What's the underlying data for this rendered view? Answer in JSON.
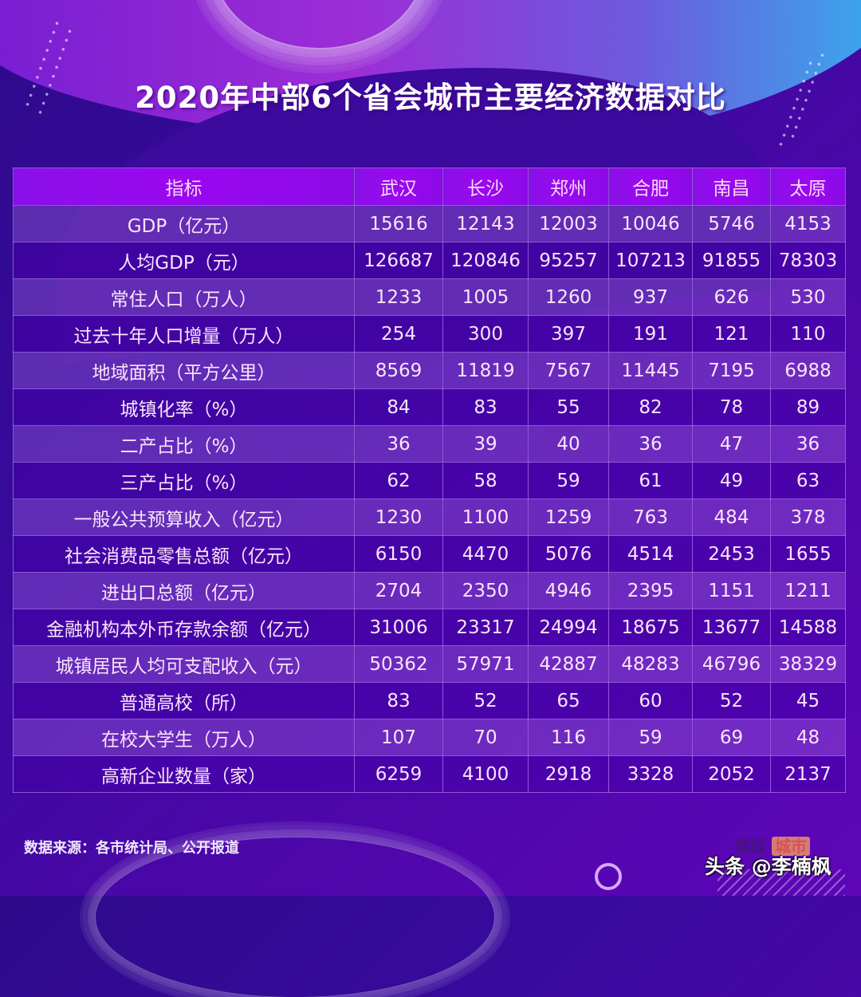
{
  "title": "2020年中部6个省会城市主要经济数据对比",
  "table": {
    "header": [
      "指标",
      "武汉",
      "长沙",
      "郑州",
      "合肥",
      "南昌",
      "太原"
    ],
    "rows": [
      [
        "GDP（亿元）",
        "15616",
        "12143",
        "12003",
        "10046",
        "5746",
        "4153"
      ],
      [
        "人均GDP（元）",
        "126687",
        "120846",
        "95257",
        "107213",
        "91855",
        "78303"
      ],
      [
        "常住人口（万人）",
        "1233",
        "1005",
        "1260",
        "937",
        "626",
        "530"
      ],
      [
        "过去十年人口增量（万人）",
        "254",
        "300",
        "397",
        "191",
        "121",
        "110"
      ],
      [
        "地域面积（平方公里）",
        "8569",
        "11819",
        "7567",
        "11445",
        "7195",
        "6988"
      ],
      [
        "城镇化率（%）",
        "84",
        "83",
        "55",
        "82",
        "78",
        "89"
      ],
      [
        "二产占比（%）",
        "36",
        "39",
        "40",
        "36",
        "47",
        "36"
      ],
      [
        "三产占比（%）",
        "62",
        "58",
        "59",
        "61",
        "49",
        "63"
      ],
      [
        "一般公共预算收入（亿元）",
        "1230",
        "1100",
        "1259",
        "763",
        "484",
        "378"
      ],
      [
        "社会消费品零售总额（亿元）",
        "6150",
        "4470",
        "5076",
        "4514",
        "2453",
        "1655"
      ],
      [
        "进出口总额（亿元）",
        "2704",
        "2350",
        "4946",
        "2395",
        "1151",
        "1211"
      ],
      [
        "金融机构本外币存款余额（亿元）",
        "31006",
        "23317",
        "24994",
        "18675",
        "13677",
        "14588"
      ],
      [
        "城镇居民人均可支配收入（元）",
        "50362",
        "57971",
        "42887",
        "48283",
        "46796",
        "38329"
      ],
      [
        "普通高校（所）",
        "83",
        "52",
        "65",
        "60",
        "52",
        "45"
      ],
      [
        "在校大学生（万人）",
        "107",
        "70",
        "116",
        "59",
        "69",
        "48"
      ],
      [
        "高新企业数量（家）",
        "6259",
        "4100",
        "2918",
        "3328",
        "2052",
        "2137"
      ]
    ]
  },
  "footer": {
    "source": "数据来源：各市统计局、公开报道",
    "logo_a": "搜狐",
    "logo_b": "城市",
    "watermark": "头条 @李楠枫"
  },
  "colors": {
    "background": "#3a0a9e",
    "header_row": "#9a08f0",
    "accent_cyan": "#2ec0f5",
    "text": "#fbe4fb"
  },
  "chart_data": {
    "type": "table",
    "title": "2020年中部6个省会城市主要经济数据对比",
    "columns": [
      "指标",
      "武汉",
      "长沙",
      "郑州",
      "合肥",
      "南昌",
      "太原"
    ],
    "categories": [
      "武汉",
      "长沙",
      "郑州",
      "合肥",
      "南昌",
      "太原"
    ],
    "series": [
      {
        "name": "GDP（亿元）",
        "values": [
          15616,
          12143,
          12003,
          10046,
          5746,
          4153
        ]
      },
      {
        "name": "人均GDP（元）",
        "values": [
          126687,
          120846,
          95257,
          107213,
          91855,
          78303
        ]
      },
      {
        "name": "常住人口（万人）",
        "values": [
          1233,
          1005,
          1260,
          937,
          626,
          530
        ]
      },
      {
        "name": "过去十年人口增量（万人）",
        "values": [
          254,
          300,
          397,
          191,
          121,
          110
        ]
      },
      {
        "name": "地域面积（平方公里）",
        "values": [
          8569,
          11819,
          7567,
          11445,
          7195,
          6988
        ]
      },
      {
        "name": "城镇化率（%）",
        "values": [
          84,
          83,
          55,
          82,
          78,
          89
        ]
      },
      {
        "name": "二产占比（%）",
        "values": [
          36,
          39,
          40,
          36,
          47,
          36
        ]
      },
      {
        "name": "三产占比（%）",
        "values": [
          62,
          58,
          59,
          61,
          49,
          63
        ]
      },
      {
        "name": "一般公共预算收入（亿元）",
        "values": [
          1230,
          1100,
          1259,
          763,
          484,
          378
        ]
      },
      {
        "name": "社会消费品零售总额（亿元）",
        "values": [
          6150,
          4470,
          5076,
          4514,
          2453,
          1655
        ]
      },
      {
        "name": "进出口总额（亿元）",
        "values": [
          2704,
          2350,
          4946,
          2395,
          1151,
          1211
        ]
      },
      {
        "name": "金融机构本外币存款余额（亿元）",
        "values": [
          31006,
          23317,
          24994,
          18675,
          13677,
          14588
        ]
      },
      {
        "name": "城镇居民人均可支配收入（元）",
        "values": [
          50362,
          57971,
          42887,
          48283,
          46796,
          38329
        ]
      },
      {
        "name": "普通高校（所）",
        "values": [
          83,
          52,
          65,
          60,
          52,
          45
        ]
      },
      {
        "name": "在校大学生（万人）",
        "values": [
          107,
          70,
          116,
          59,
          69,
          48
        ]
      },
      {
        "name": "高新企业数量（家）",
        "values": [
          6259,
          4100,
          2918,
          3328,
          2052,
          2137
        ]
      }
    ],
    "source": "数据来源：各市统计局、公开报道"
  }
}
